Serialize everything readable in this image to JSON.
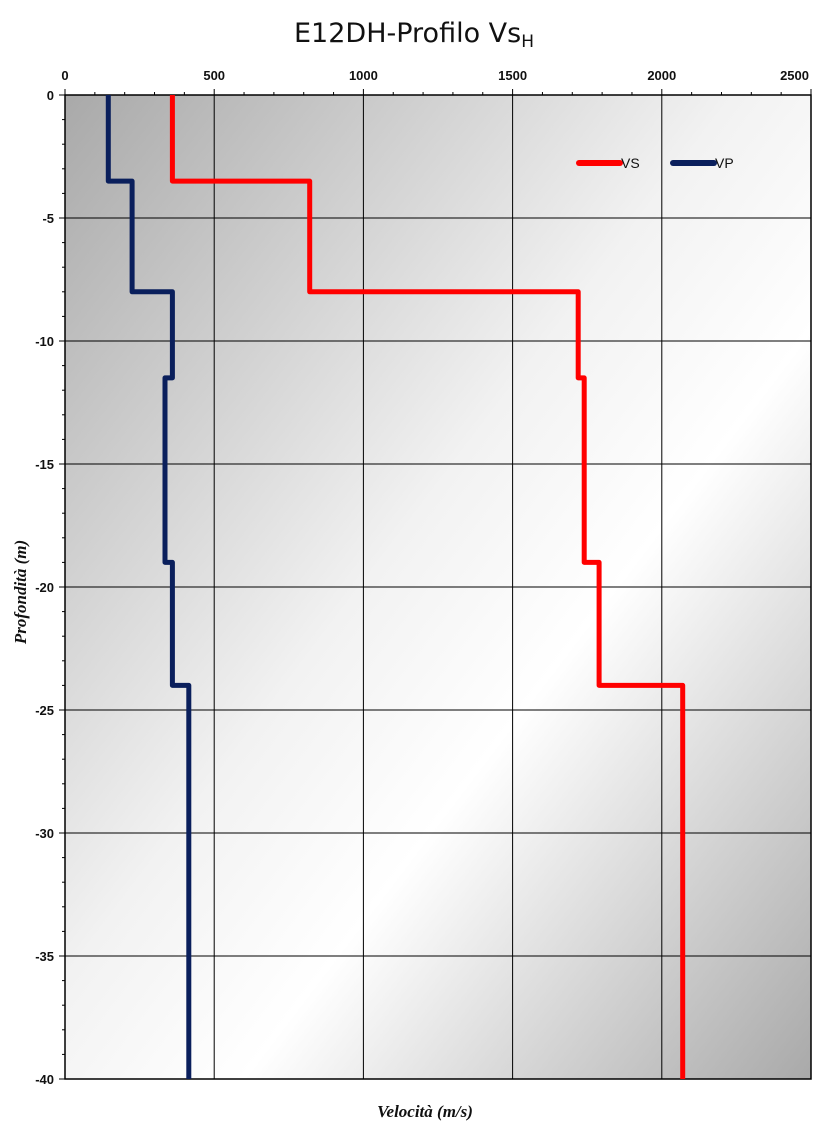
{
  "chart_data": {
    "type": "line",
    "title": {
      "main": "E12DH-Profilo Vs",
      "subscript": "H"
    },
    "xlabel": "Velocità (m/s)",
    "ylabel": "Profondità (m)",
    "xlim": [
      0,
      2500
    ],
    "ylim": [
      -40,
      0
    ],
    "x_ticks": [
      0,
      500,
      1000,
      1500,
      2000,
      2500
    ],
    "y_ticks": [
      0,
      -5,
      -10,
      -15,
      -20,
      -25,
      -30,
      -35,
      -40
    ],
    "x_axis_position": "top",
    "grid": true,
    "legend_position": "top-right",
    "series": [
      {
        "name": "VS",
        "color": "#ff0000",
        "points": [
          [
            360,
            0
          ],
          [
            360,
            -3.5
          ],
          [
            820,
            -3.5
          ],
          [
            820,
            -8
          ],
          [
            1720,
            -8
          ],
          [
            1720,
            -11.5
          ],
          [
            1740,
            -11.5
          ],
          [
            1740,
            -19
          ],
          [
            1790,
            -19
          ],
          [
            1790,
            -24
          ],
          [
            2070,
            -24
          ],
          [
            2070,
            -40
          ]
        ]
      },
      {
        "name": "VP",
        "color": "#0a1f5c",
        "points": [
          [
            145,
            0
          ],
          [
            145,
            -3.5
          ],
          [
            225,
            -3.5
          ],
          [
            225,
            -8
          ],
          [
            360,
            -8
          ],
          [
            360,
            -11.5
          ],
          [
            335,
            -11.5
          ],
          [
            335,
            -19
          ],
          [
            360,
            -19
          ],
          [
            360,
            -24
          ],
          [
            415,
            -24
          ],
          [
            415,
            -40
          ]
        ]
      }
    ]
  }
}
